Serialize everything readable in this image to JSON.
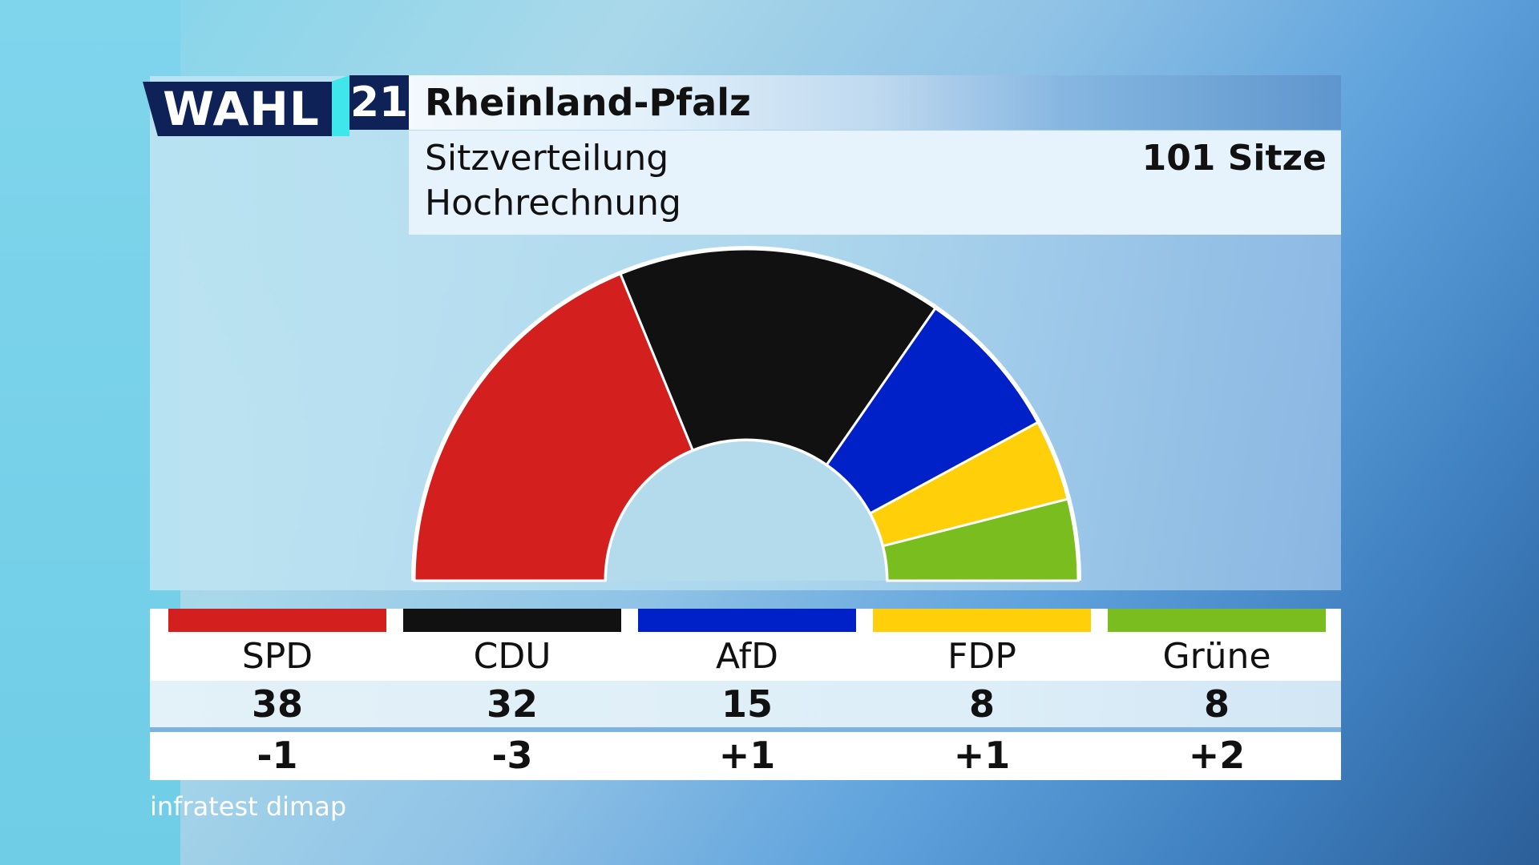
{
  "logo": {
    "word": "WAHL",
    "number": "21"
  },
  "header": {
    "title": "Rheinland-Pfalz",
    "subtitle1": "Sitzverteilung",
    "subtitle2": "Hochrechnung",
    "seats_total_label": "101 Sitze"
  },
  "chart_data": {
    "type": "pie",
    "variant": "parliament-semicircle",
    "total_seats": 101,
    "categories": [
      "SPD",
      "CDU",
      "AfD",
      "FDP",
      "Grüne"
    ],
    "values": [
      38,
      32,
      15,
      8,
      8
    ],
    "changes": [
      "-1",
      "-3",
      "+1",
      "+1",
      "+2"
    ],
    "colors": [
      "#d41f1f",
      "#111111",
      "#0020c8",
      "#ffcf0a",
      "#7abd1f"
    ]
  },
  "source": "infratest dimap"
}
